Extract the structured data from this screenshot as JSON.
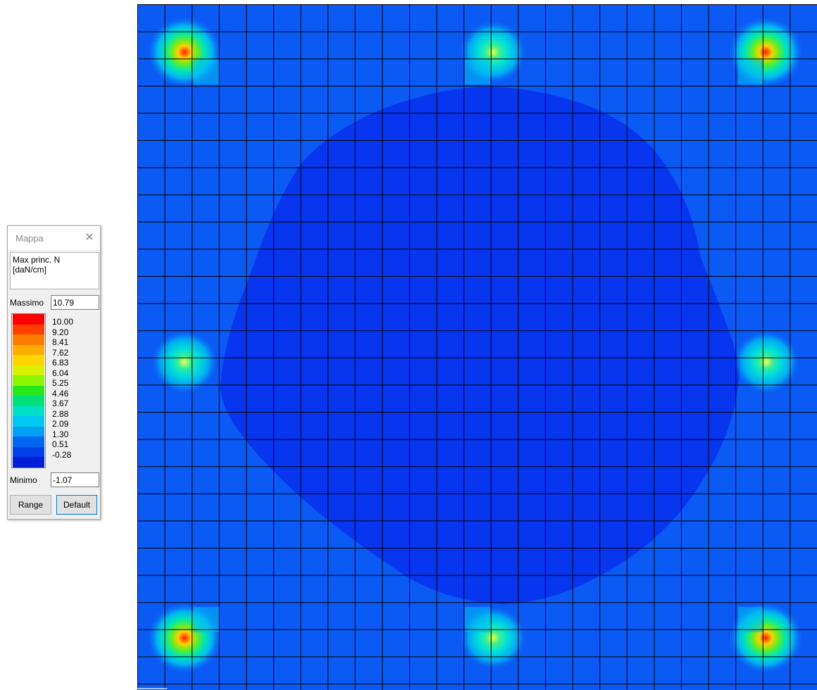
{
  "mappa": {
    "title": "Mappa",
    "quantity": [
      "Max princ. N",
      "[daN/cm]"
    ],
    "max_label": "Massimo",
    "max_value": "10.79",
    "min_label": "Minimo",
    "min_value": "-1.07",
    "range_button": "Range",
    "default_button": "Default",
    "legend": [
      {
        "value": "10.00",
        "color": "#ff0000"
      },
      {
        "value": "9.20",
        "color": "#ff4000"
      },
      {
        "value": "8.41",
        "color": "#ff7a00"
      },
      {
        "value": "7.62",
        "color": "#ffab00"
      },
      {
        "value": "6.83",
        "color": "#ffd400"
      },
      {
        "value": "6.04",
        "color": "#d9f000"
      },
      {
        "value": "5.25",
        "color": "#8ef500"
      },
      {
        "value": "4.46",
        "color": "#28e81a"
      },
      {
        "value": "3.67",
        "color": "#00e07a"
      },
      {
        "value": "2.88",
        "color": "#00e0c8"
      },
      {
        "value": "2.09",
        "color": "#00c8f0"
      },
      {
        "value": "1.30",
        "color": "#00a0f5"
      },
      {
        "value": "0.51",
        "color": "#0068f0"
      },
      {
        "value": "-0.28",
        "color": "#0040e8"
      },
      {
        "value": "",
        "color": "#0020d8"
      }
    ]
  },
  "map_colors": {
    "background": "#0c5af4",
    "dark_region": "#0835ee",
    "grid": "#000000"
  },
  "grid": {
    "columns": 25,
    "rows": 25
  }
}
